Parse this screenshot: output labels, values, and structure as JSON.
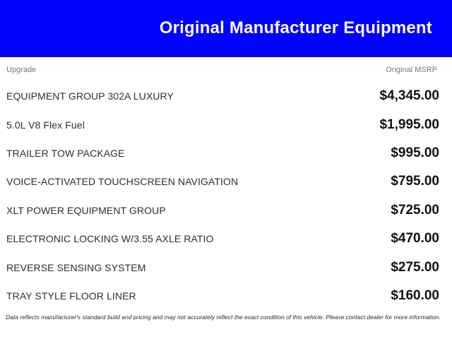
{
  "header": {
    "title": "Original Manufacturer Equipment"
  },
  "colors": {
    "header_background": "#0101fe",
    "header_border": "#1414b4",
    "title_text": "#fcfcfc",
    "column_header_text": "#757575",
    "upgrade_text": "#2e2e2e",
    "price_text": "#121212"
  },
  "table": {
    "column_headers": {
      "upgrade": "Upgrade",
      "msrp": "Original MSRP"
    },
    "rows": [
      {
        "upgrade": "EQUIPMENT GROUP 302A LUXURY",
        "msrp": "$4,345.00"
      },
      {
        "upgrade": "5.0L V8 Flex Fuel",
        "msrp": "$1,995.00"
      },
      {
        "upgrade": "TRAILER TOW PACKAGE",
        "msrp": "$995.00"
      },
      {
        "upgrade": "VOICE-ACTIVATED TOUCHSCREEN NAVIGATION",
        "msrp": "$795.00"
      },
      {
        "upgrade": "XLT POWER EQUIPMENT GROUP",
        "msrp": "$725.00"
      },
      {
        "upgrade": "ELECTRONIC LOCKING W/3.55 AXLE RATIO",
        "msrp": "$470.00"
      },
      {
        "upgrade": "REVERSE SENSING SYSTEM",
        "msrp": "$275.00"
      },
      {
        "upgrade": "TRAY STYLE FLOOR LINER",
        "msrp": "$160.00"
      }
    ]
  },
  "footer": {
    "disclaimer": "Data reflects manufacturer's standard build and pricing and may not accurately reflect the exact condition of this vehicle. Please contact dealer for more information."
  }
}
